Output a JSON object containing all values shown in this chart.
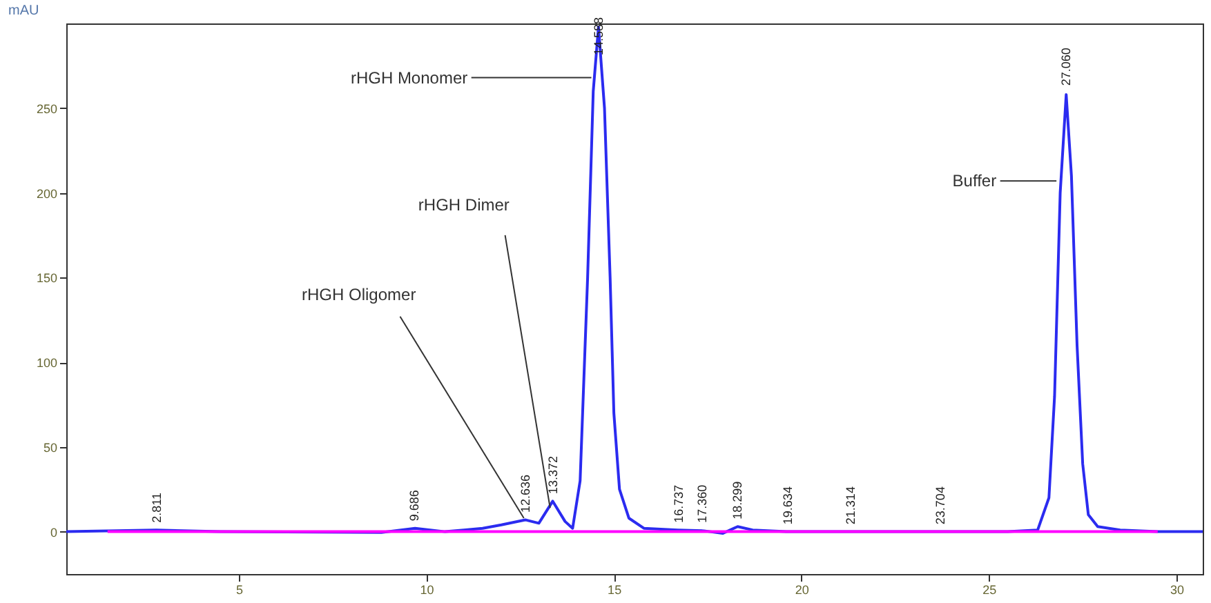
{
  "chart_data": {
    "type": "line",
    "ylabel": "mAU",
    "xlim": [
      0.4,
      30.7
    ],
    "ylim": [
      -25,
      300
    ],
    "xticks": [
      5,
      10,
      15,
      20,
      25,
      30
    ],
    "yticks": [
      0,
      50,
      100,
      150,
      200,
      250
    ],
    "grid": false,
    "marker": "none",
    "line_style": "solid",
    "series": [
      {
        "color": "#2b2bf0",
        "x": [
          0.4,
          2.8,
          4.5,
          8.8,
          9.7,
          10.5,
          11,
          11.5,
          12,
          12.64,
          13.0,
          13.37,
          13.7,
          13.9,
          14.1,
          14.3,
          14.45,
          14.59,
          14.75,
          14.9,
          15.0,
          15.15,
          15.4,
          15.8,
          16.7,
          17.4,
          17.9,
          18.3,
          18.7,
          19.6,
          21.3,
          23.7,
          25.5,
          26.3,
          26.6,
          26.75,
          26.9,
          27.06,
          27.2,
          27.35,
          27.5,
          27.65,
          27.9,
          28.5,
          29.5,
          30.7
        ],
        "values": [
          0,
          1,
          0,
          -0.5,
          2,
          0,
          1,
          2,
          4,
          7,
          5,
          18,
          6,
          2,
          30,
          150,
          260,
          298,
          250,
          150,
          70,
          25,
          8,
          2,
          1,
          0.5,
          -1,
          3,
          1,
          0,
          0,
          0,
          0,
          1,
          20,
          80,
          200,
          258,
          210,
          110,
          40,
          10,
          3,
          1,
          0,
          0
        ]
      },
      {
        "color": "#ff00ff",
        "x": [
          1.5,
          29.5
        ],
        "values": [
          0,
          0
        ]
      }
    ],
    "annotations": [
      {
        "text": "rHGH Monomer",
        "x": 14.4,
        "y": 268
      },
      {
        "text": "rHGH Dimer",
        "x": 13.3,
        "y": 14
      },
      {
        "text": "rHGH Oligomer",
        "x": 12.6,
        "y": 8
      },
      {
        "text": "Buffer",
        "x": 26.8,
        "y": 207
      },
      {
        "text": "2.811",
        "x": 2.811,
        "y": 2
      },
      {
        "text": "9.686",
        "x": 9.686,
        "y": 3
      },
      {
        "text": "12.636",
        "x": 12.636,
        "y": 8
      },
      {
        "text": "13.372",
        "x": 13.372,
        "y": 19
      },
      {
        "text": "14.588",
        "x": 14.588,
        "y": 278
      },
      {
        "text": "16.737",
        "x": 16.737,
        "y": 2
      },
      {
        "text": "17.360",
        "x": 17.36,
        "y": 2
      },
      {
        "text": "18.299",
        "x": 18.299,
        "y": 4
      },
      {
        "text": "19.634",
        "x": 19.634,
        "y": 1
      },
      {
        "text": "21.314",
        "x": 21.314,
        "y": 1
      },
      {
        "text": "23.704",
        "x": 23.704,
        "y": 1
      },
      {
        "text": "27.060",
        "x": 27.06,
        "y": 260
      }
    ]
  }
}
